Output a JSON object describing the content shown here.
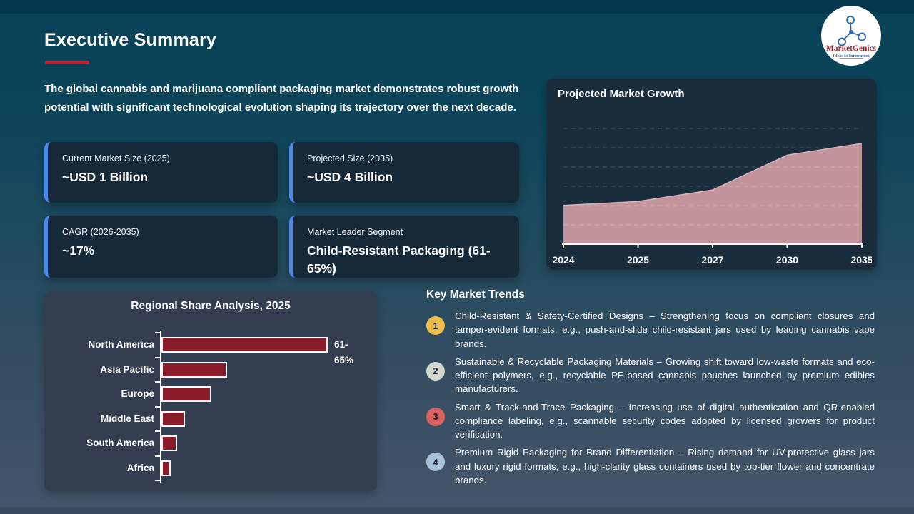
{
  "header": {
    "title": "Executive Summary",
    "intro": "The global cannabis and marijuana compliant packaging market demonstrates robust growth potential with significant technological evolution shaping its trajectory over the next decade."
  },
  "logo": {
    "name": "MarketGenics",
    "tagline": "Ideas to Innovation"
  },
  "stat_cards": [
    {
      "label": "Current Market Size (2025)",
      "value": "~USD 1 Billion"
    },
    {
      "label": "Projected Size (2035)",
      "value": "~USD 4 Billion"
    },
    {
      "label": "CAGR (2026-2035)",
      "value": "~17%"
    },
    {
      "label": "Market Leader Segment",
      "value": "Child-Resistant Packaging (61-65%)"
    }
  ],
  "trends": {
    "header": "Key Market Trends",
    "items": [
      {
        "num": "1",
        "badge_color": "#ecbd4a",
        "text": "Child-Resistant & Safety-Certified Designs – Strengthening focus on compliant closures and tamper-evident formats, e.g., push-and-slide child-resistant jars used by leading cannabis vape brands."
      },
      {
        "num": "2",
        "badge_color": "#d3d8cc",
        "text": "Sustainable & Recyclable Packaging Materials – Growing shift toward low-waste formats and eco-efficient polymers, e.g., recyclable PE-based cannabis pouches launched by premium edibles manufacturers."
      },
      {
        "num": "3",
        "badge_color": "#d96361",
        "text": "Smart & Track-and-Trace Packaging – Increasing use of digital authentication and QR-enabled compliance labeling, e.g., scannable security codes adopted by licensed growers for product verification."
      },
      {
        "num": "4",
        "badge_color": "#a7c2d8",
        "text": "Premium Rigid Packaging for Brand Differentiation – Rising demand for UV-protective glass jars and luxury rigid formats, e.g., high-clarity glass containers used by top-tier flower and concentrate brands."
      }
    ]
  },
  "chart_data": [
    {
      "type": "area",
      "title": "Projected Market Growth",
      "x": [
        "2024",
        "2025",
        "2027",
        "2030",
        "2035"
      ],
      "values": [
        1.0,
        1.1,
        1.4,
        2.3,
        2.6
      ],
      "units": "relative market size (no y-axis labels shown; slide text implies ~USD 1B in 2025 to ~USD 4B in 2035)",
      "xlabel": "",
      "ylabel": "",
      "grid": "6 dashed horizontal gridlines",
      "legend": "none",
      "fill_color": "#c2949b"
    },
    {
      "type": "bar",
      "orientation": "horizontal",
      "title": "Regional Share Analysis, 2025",
      "categories": [
        "North America",
        "Asia Pacific",
        "Europe",
        "Middle East",
        "South America",
        "Africa"
      ],
      "values": [
        63,
        25,
        19,
        9,
        6,
        3.5
      ],
      "units": "% share (estimated from bar lengths; only North America labeled)",
      "annotations": {
        "North America": "61- 65%"
      },
      "xlabel": "",
      "ylabel": "",
      "grid": "off",
      "legend": "none",
      "bar_color": "#8a1b28"
    }
  ],
  "colors": {
    "accent_red": "#c01f2f",
    "stat_card_accent_blue": "#4b87f0",
    "area_fill": "#c2949b",
    "bar_fill": "#8a1b28",
    "background_top": "#084157",
    "background_bottom": "#475569"
  }
}
